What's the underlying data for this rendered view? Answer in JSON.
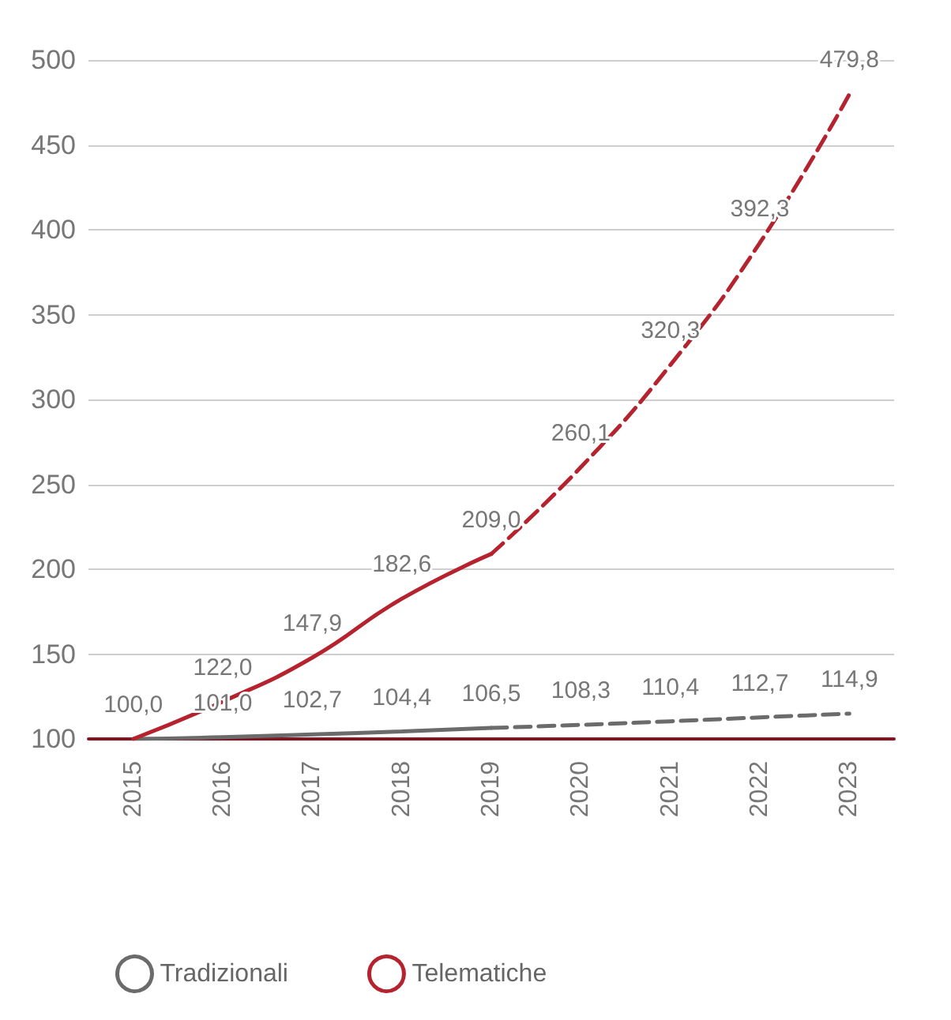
{
  "chart_data": {
    "type": "line",
    "categories": [
      "2015",
      "2016",
      "2017",
      "2018",
      "2019",
      "2020",
      "2021",
      "2022",
      "2023"
    ],
    "series": [
      {
        "name": "Tradizionali",
        "color": "#6b6b6b",
        "line_style": "solid",
        "values": [
          100.0,
          101.0,
          102.7,
          104.4,
          106.5,
          null,
          null,
          null,
          null
        ],
        "value_labels": [
          null,
          "101,0",
          "102,7",
          "104,4",
          "106,5",
          null,
          null,
          null,
          null
        ]
      },
      {
        "color": "#6b6b6b",
        "line_style": "dashed",
        "values": [
          null,
          null,
          null,
          null,
          106.5,
          108.3,
          110.4,
          112.7,
          114.9
        ],
        "value_labels": [
          null,
          null,
          null,
          null,
          null,
          "108,3",
          "110,4",
          "112,7",
          "114,9"
        ]
      },
      {
        "name": "Telematiche",
        "color": "#b5232f",
        "line_style": "solid",
        "values": [
          100.0,
          122.0,
          147.9,
          182.6,
          209.0,
          null,
          null,
          null,
          null
        ],
        "value_labels": [
          "100,0",
          "122,0",
          "147,9",
          "182,6",
          "209,0",
          null,
          null,
          null,
          null
        ]
      },
      {
        "color": "#b5232f",
        "line_style": "dashed",
        "values": [
          null,
          null,
          null,
          null,
          209.0,
          260.1,
          320.3,
          392.3,
          479.8
        ],
        "value_labels": [
          null,
          null,
          null,
          null,
          null,
          "260,1",
          "320,3",
          "392,3",
          "479,8"
        ]
      }
    ],
    "ylim": [
      100,
      500
    ],
    "yticks": [
      100,
      150,
      200,
      250,
      300,
      350,
      400,
      450,
      500
    ],
    "grid": "y",
    "legend": "bottom",
    "marker": "none"
  }
}
